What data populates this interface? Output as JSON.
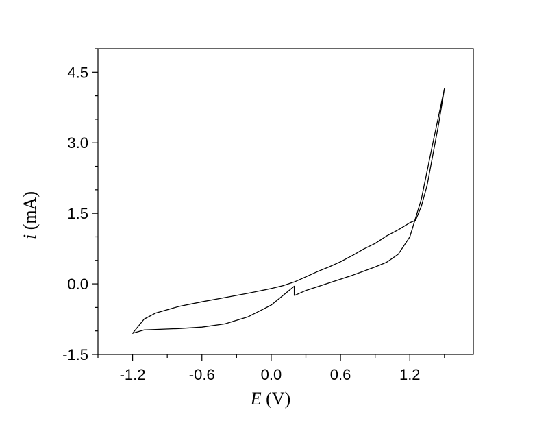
{
  "chart_data": {
    "type": "line",
    "title": "",
    "xlabel_var": "E",
    "xlabel_unit": " (V)",
    "ylabel_var": "i",
    "ylabel_unit": " (mA)",
    "xlim": [
      -1.5,
      1.75
    ],
    "ylim": [
      -1.5,
      5.0
    ],
    "xticks": [
      -1.2,
      -0.6,
      0.0,
      0.6,
      1.2
    ],
    "xtick_labels": [
      "-1.2",
      "-0.6",
      "0.0",
      "0.6",
      "1.2"
    ],
    "yticks": [
      -1.5,
      0.0,
      1.5,
      3.0,
      4.5
    ],
    "ytick_labels": [
      "-1.5",
      "0.0",
      "1.5",
      "3.0",
      "4.5"
    ],
    "grid": false,
    "legend": "none",
    "line_color": "#000000",
    "series": [
      {
        "points": [
          [
            0.2,
            -0.25
          ],
          [
            0.3,
            -0.14
          ],
          [
            0.4,
            -0.06
          ],
          [
            0.5,
            0.02
          ],
          [
            0.6,
            0.1
          ],
          [
            0.7,
            0.18
          ],
          [
            0.8,
            0.27
          ],
          [
            0.9,
            0.36
          ],
          [
            1.0,
            0.46
          ],
          [
            1.1,
            0.63
          ],
          [
            1.2,
            1.0
          ],
          [
            1.3,
            1.8
          ],
          [
            1.4,
            3.0
          ],
          [
            1.5,
            4.15
          ],
          [
            1.45,
            3.4
          ],
          [
            1.4,
            2.75
          ],
          [
            1.35,
            2.1
          ],
          [
            1.3,
            1.65
          ],
          [
            1.25,
            1.35
          ],
          [
            1.2,
            1.3
          ],
          [
            1.1,
            1.15
          ],
          [
            1.0,
            1.02
          ],
          [
            0.9,
            0.86
          ],
          [
            0.8,
            0.74
          ],
          [
            0.7,
            0.6
          ],
          [
            0.6,
            0.47
          ],
          [
            0.5,
            0.36
          ],
          [
            0.4,
            0.26
          ],
          [
            0.3,
            0.15
          ],
          [
            0.2,
            0.04
          ],
          [
            0.1,
            -0.04
          ],
          [
            0.0,
            -0.1
          ],
          [
            -0.2,
            -0.2
          ],
          [
            -0.4,
            -0.29
          ],
          [
            -0.6,
            -0.38
          ],
          [
            -0.8,
            -0.48
          ],
          [
            -1.0,
            -0.62
          ],
          [
            -1.1,
            -0.75
          ],
          [
            -1.2,
            -1.05
          ],
          [
            -1.1,
            -0.98
          ],
          [
            -1.0,
            -0.97
          ],
          [
            -0.8,
            -0.95
          ],
          [
            -0.6,
            -0.92
          ],
          [
            -0.4,
            -0.85
          ],
          [
            -0.2,
            -0.7
          ],
          [
            0.0,
            -0.45
          ],
          [
            0.1,
            -0.25
          ],
          [
            0.2,
            -0.05
          ],
          [
            0.2,
            -0.25
          ]
        ]
      }
    ]
  }
}
